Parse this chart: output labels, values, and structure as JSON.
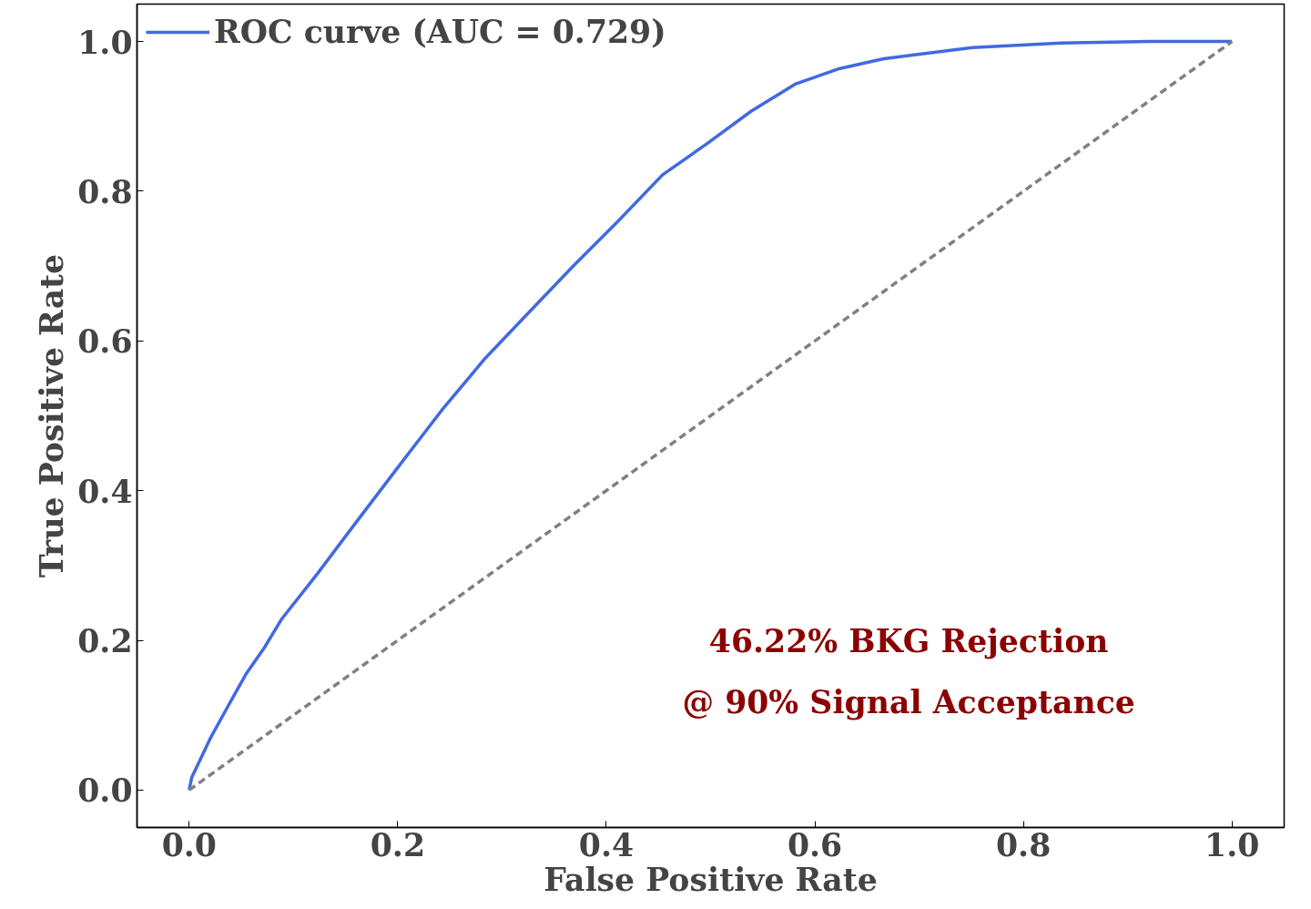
{
  "chart_data": {
    "type": "line",
    "xlabel": "False Positive Rate",
    "ylabel": "True Positive Rate",
    "xlim": [
      -0.05,
      1.05
    ],
    "ylim": [
      -0.05,
      1.05
    ],
    "xticks": [
      {
        "value": 0,
        "label": "0.0"
      },
      0.2,
      0.4,
      0.6,
      0.8,
      {
        "value": 1,
        "label": "1.0"
      }
    ],
    "yticks": [
      {
        "value": 0,
        "label": "0.0"
      },
      0.2,
      0.4,
      0.6,
      0.8,
      {
        "value": 1,
        "label": "1.0"
      }
    ],
    "grid": false,
    "legend": "top left",
    "marker": "none",
    "annotations": [
      "46.22% BKG Rejection",
      "@ 90% Signal Acceptance"
    ],
    "series": [
      {
        "name": "ROC curve (AUC = 0.729)",
        "color": "#4169e1",
        "line_style": "solid",
        "x": [
          0,
          0.0025,
          0.021,
          0.038,
          0.055,
          0.072,
          0.089,
          0.123,
          0.157,
          0.199,
          0.242,
          0.284,
          0.327,
          0.369,
          0.412,
          0.454,
          0.497,
          0.539,
          0.581,
          0.624,
          0.666,
          0.751,
          0.836,
          0.921,
          1
        ],
        "values": [
          0,
          0.017,
          0.071,
          0.114,
          0.156,
          0.19,
          0.229,
          0.289,
          0.352,
          0.429,
          0.507,
          0.577,
          0.64,
          0.701,
          0.761,
          0.822,
          0.864,
          0.907,
          0.943,
          0.964,
          0.977,
          0.992,
          0.998,
          1.0,
          1.0
        ]
      },
      {
        "color": "#808080",
        "line_style": "dashed",
        "x": [
          0,
          1
        ],
        "values": [
          0,
          1
        ]
      }
    ]
  }
}
